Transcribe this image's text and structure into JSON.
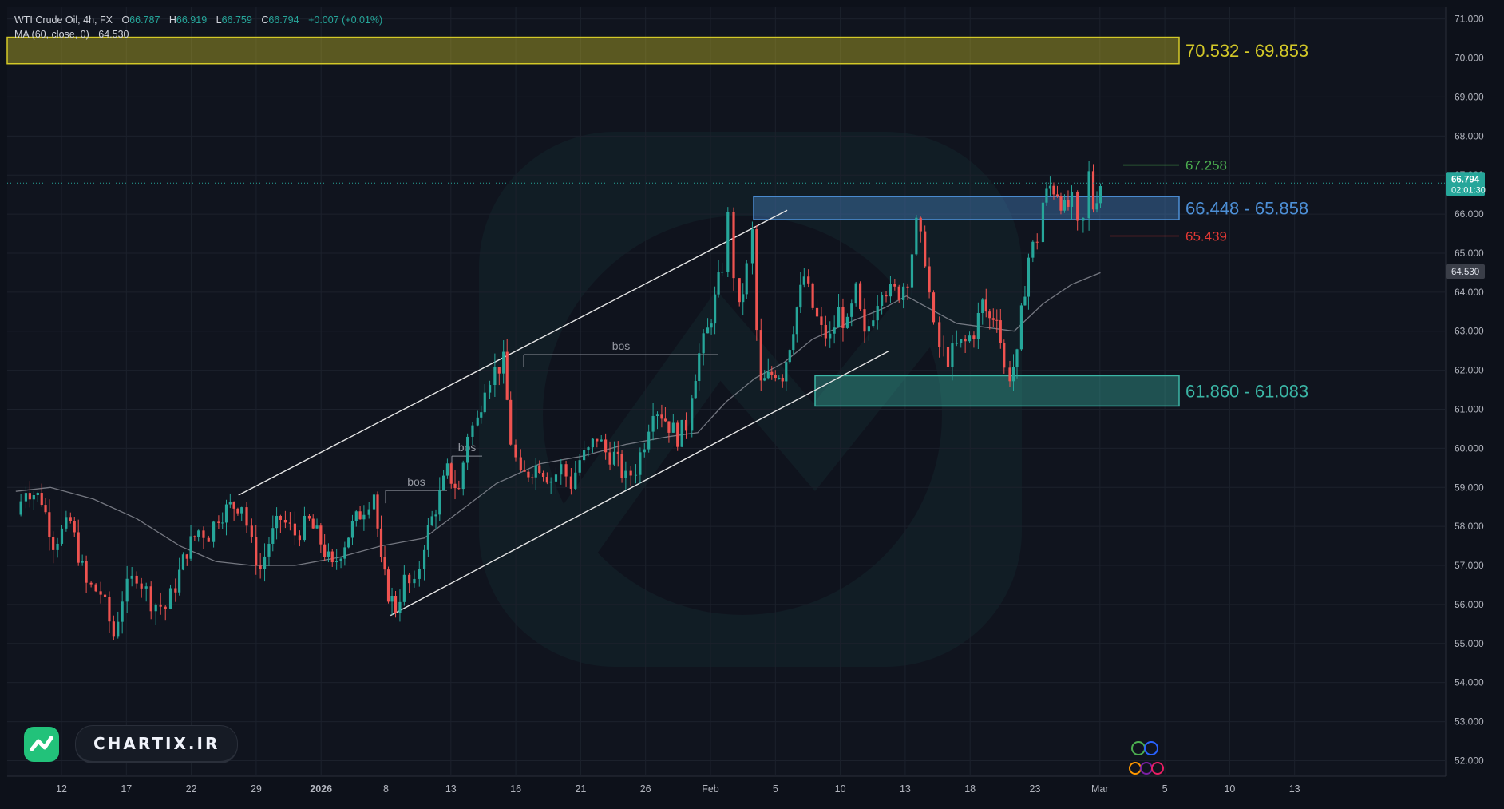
{
  "legend": {
    "symbol": "WTI Crude Oil, 4h, FX",
    "o_label": "O",
    "o_value": "66.787",
    "h_label": "H",
    "h_value": "66.919",
    "l_label": "L",
    "l_value": "66.759",
    "c_label": "C",
    "c_value": "66.794",
    "change": "+0.007 (+0.01%)",
    "ma_label": "MA (60, close, 0)",
    "ma_value": "64.530"
  },
  "watermark": {
    "brand": "CHARTIX.IR"
  },
  "chart_data": {
    "type": "candlestick",
    "price_axis": {
      "min": 51.6,
      "max": 71.3,
      "ticks": [
        "71.000",
        "70.000",
        "69.000",
        "68.000",
        "67.000",
        "66.000",
        "65.000",
        "64.000",
        "63.000",
        "62.000",
        "61.000",
        "60.000",
        "59.000",
        "58.000",
        "57.000",
        "56.000",
        "55.000",
        "54.000",
        "53.000",
        "52.000"
      ]
    },
    "time_axis": {
      "labels": [
        "12",
        "17",
        "22",
        "29",
        "2026",
        "8",
        "13",
        "16",
        "21",
        "26",
        "Feb",
        "5",
        "10",
        "13",
        "18",
        "23",
        "Mar",
        "5",
        "10",
        "13"
      ]
    },
    "last_price": {
      "value": "66.794",
      "countdown": "02:01:30",
      "color": "#26a69a"
    },
    "ma_price": {
      "value": "64.530",
      "color": "#9598a1"
    },
    "zones": [
      {
        "name": "supply-zone",
        "label": "70.532 - 69.853",
        "top": 70.532,
        "bottom": 69.853,
        "color": "#d4c928"
      },
      {
        "name": "resistance-zone",
        "label": "66.448 - 65.858",
        "top": 66.448,
        "bottom": 65.858,
        "color": "#4d8fd6"
      },
      {
        "name": "demand-zone",
        "label": "61.860 - 61.083",
        "top": 61.86,
        "bottom": 61.083,
        "color": "#3bb5a5"
      }
    ],
    "levels": [
      {
        "name": "high-level",
        "label": "67.258",
        "value": 67.258,
        "color": "#4caf50"
      },
      {
        "name": "low-level",
        "label": "65.439",
        "value": 65.439,
        "color": "#e53935"
      }
    ],
    "annotations": [
      {
        "text": "bos",
        "price": 58.92
      },
      {
        "text": "bos",
        "price": 59.8
      },
      {
        "text": "bos",
        "price": 62.4
      }
    ],
    "channel": {
      "upper": [
        [
          0.1608,
          58.8
        ],
        [
          0.5422,
          66.1
        ]
      ],
      "lower": [
        [
          0.2665,
          55.72
        ],
        [
          0.6133,
          62.5
        ]
      ]
    },
    "ohlc_path": [
      [
        0.006,
        58.3
      ],
      [
        0.013,
        59.0
      ],
      [
        0.024,
        58.7
      ],
      [
        0.032,
        57.6
      ],
      [
        0.044,
        58.1
      ],
      [
        0.055,
        56.5
      ],
      [
        0.065,
        56.3
      ],
      [
        0.074,
        55.2
      ],
      [
        0.08,
        56.2
      ],
      [
        0.09,
        56.8
      ],
      [
        0.1,
        56.1
      ],
      [
        0.11,
        55.9
      ],
      [
        0.117,
        56.5
      ],
      [
        0.125,
        57.4
      ],
      [
        0.133,
        57.9
      ],
      [
        0.14,
        57.8
      ],
      [
        0.147,
        58.3
      ],
      [
        0.155,
        58.5
      ],
      [
        0.163,
        58.6
      ],
      [
        0.17,
        57.5
      ],
      [
        0.176,
        56.9
      ],
      [
        0.182,
        57.6
      ],
      [
        0.19,
        58.2
      ],
      [
        0.2,
        57.8
      ],
      [
        0.21,
        58.1
      ],
      [
        0.218,
        57.6
      ],
      [
        0.226,
        56.9
      ],
      [
        0.232,
        57.4
      ],
      [
        0.24,
        58.0
      ],
      [
        0.248,
        58.5
      ],
      [
        0.255,
        58.9
      ],
      [
        0.26,
        57.0
      ],
      [
        0.265,
        56.3
      ],
      [
        0.27,
        55.9
      ],
      [
        0.276,
        56.6
      ],
      [
        0.283,
        56.4
      ],
      [
        0.29,
        57.6
      ],
      [
        0.298,
        58.5
      ],
      [
        0.306,
        59.4
      ],
      [
        0.314,
        58.9
      ],
      [
        0.32,
        60.4
      ],
      [
        0.327,
        60.7
      ],
      [
        0.332,
        61.7
      ],
      [
        0.339,
        62.0
      ],
      [
        0.345,
        62.2
      ],
      [
        0.35,
        60.2
      ],
      [
        0.357,
        59.2
      ],
      [
        0.365,
        59.5
      ],
      [
        0.37,
        59.6
      ],
      [
        0.378,
        59.2
      ],
      [
        0.385,
        59.5
      ],
      [
        0.392,
        59.1
      ],
      [
        0.398,
        59.7
      ],
      [
        0.404,
        59.9
      ],
      [
        0.41,
        60.3
      ],
      [
        0.416,
        59.9
      ],
      [
        0.422,
        59.8
      ],
      [
        0.43,
        59.2
      ],
      [
        0.437,
        59.5
      ],
      [
        0.443,
        60.2
      ],
      [
        0.449,
        61.1
      ],
      [
        0.455,
        60.9
      ],
      [
        0.46,
        60.6
      ],
      [
        0.466,
        60.3
      ],
      [
        0.472,
        60.6
      ],
      [
        0.476,
        61.5
      ],
      [
        0.481,
        62.4
      ],
      [
        0.487,
        63.0
      ],
      [
        0.492,
        63.8
      ],
      [
        0.497,
        64.7
      ],
      [
        0.501,
        65.9
      ],
      [
        0.505,
        64.5
      ],
      [
        0.509,
        63.5
      ],
      [
        0.514,
        64.6
      ],
      [
        0.518,
        65.5
      ],
      [
        0.521,
        63.0
      ],
      [
        0.524,
        61.6
      ],
      [
        0.529,
        61.8
      ],
      [
        0.534,
        62.0
      ],
      [
        0.539,
        61.9
      ],
      [
        0.544,
        62.7
      ],
      [
        0.549,
        63.6
      ],
      [
        0.554,
        64.4
      ],
      [
        0.56,
        63.6
      ],
      [
        0.566,
        63.0
      ],
      [
        0.572,
        62.8
      ],
      [
        0.578,
        63.5
      ],
      [
        0.584,
        63.1
      ],
      [
        0.59,
        64.0
      ],
      [
        0.596,
        62.8
      ],
      [
        0.602,
        63.5
      ],
      [
        0.608,
        64.2
      ],
      [
        0.614,
        64.0
      ],
      [
        0.62,
        64.0
      ],
      [
        0.626,
        64.4
      ],
      [
        0.632,
        65.7
      ],
      [
        0.638,
        64.9
      ],
      [
        0.644,
        63.0
      ],
      [
        0.648,
        62.6
      ],
      [
        0.654,
        62.3
      ],
      [
        0.66,
        62.6
      ],
      [
        0.666,
        62.7
      ],
      [
        0.672,
        63.0
      ],
      [
        0.678,
        63.7
      ],
      [
        0.683,
        63.3
      ],
      [
        0.688,
        63.5
      ],
      [
        0.693,
        62.0
      ],
      [
        0.697,
        61.9
      ],
      [
        0.702,
        62.3
      ],
      [
        0.705,
        63.4
      ],
      [
        0.71,
        64.9
      ],
      [
        0.716,
        65.4
      ],
      [
        0.72,
        66.3
      ],
      [
        0.725,
        66.7
      ],
      [
        0.73,
        66.6
      ],
      [
        0.735,
        66.1
      ],
      [
        0.74,
        66.3
      ],
      [
        0.744,
        65.6
      ],
      [
        0.748,
        65.8
      ],
      [
        0.752,
        67.0
      ],
      [
        0.755,
        66.2
      ],
      [
        0.76,
        66.8
      ]
    ],
    "ma_path": [
      [
        0.006,
        58.9
      ],
      [
        0.03,
        59.0
      ],
      [
        0.06,
        58.7
      ],
      [
        0.09,
        58.2
      ],
      [
        0.12,
        57.5
      ],
      [
        0.145,
        57.1
      ],
      [
        0.17,
        57.0
      ],
      [
        0.2,
        57.0
      ],
      [
        0.23,
        57.2
      ],
      [
        0.26,
        57.5
      ],
      [
        0.29,
        57.7
      ],
      [
        0.315,
        58.4
      ],
      [
        0.34,
        59.1
      ],
      [
        0.37,
        59.6
      ],
      [
        0.4,
        59.8
      ],
      [
        0.43,
        60.1
      ],
      [
        0.46,
        60.3
      ],
      [
        0.48,
        60.4
      ],
      [
        0.5,
        61.2
      ],
      [
        0.52,
        61.8
      ],
      [
        0.54,
        62.2
      ],
      [
        0.56,
        62.8
      ],
      [
        0.59,
        63.3
      ],
      [
        0.61,
        63.6
      ],
      [
        0.625,
        63.9
      ],
      [
        0.64,
        63.6
      ],
      [
        0.66,
        63.2
      ],
      [
        0.68,
        63.1
      ],
      [
        0.7,
        63.0
      ],
      [
        0.72,
        63.7
      ],
      [
        0.74,
        64.2
      ],
      [
        0.76,
        64.5
      ]
    ]
  }
}
